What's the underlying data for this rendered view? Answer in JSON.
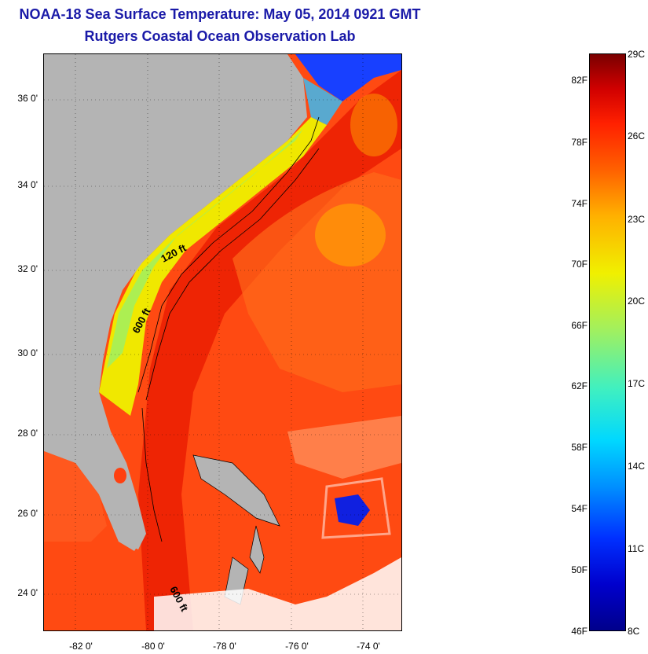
{
  "header": {
    "title": "NOAA-18 Sea Surface Temperature:  May 05, 2014 0921 GMT",
    "subtitle": "Rutgers Coastal Ocean Observation Lab"
  },
  "map": {
    "latitude_labels": [
      "36 0'",
      "34 0'",
      "32 0'",
      "30 0'",
      "28 0'",
      "26 0'",
      "24 0'"
    ],
    "longitude_labels": [
      "-82 0'",
      "-80 0'",
      "-78 0'",
      "-76 0'",
      "-74 0'"
    ],
    "contour_labels": {
      "c120": "120 ft",
      "c600a": "600 ft",
      "c600b": "600 ft"
    },
    "colors": {
      "land": "#b4b4b4",
      "gulf_stream": "#ff2a00",
      "warm_water": "#ff5010",
      "shelf_cool": "#f0f000",
      "nearshore": "#a0f060",
      "cold": "#0000cd",
      "cloud": "#ffffff"
    }
  },
  "colorbar": {
    "fahrenheit_labels": [
      "82F",
      "78F",
      "74F",
      "70F",
      "66F",
      "62F",
      "58F",
      "54F",
      "50F",
      "46F"
    ],
    "celsius_labels": [
      "29C",
      "26C",
      "23C",
      "20C",
      "17C",
      "14C",
      "11C",
      "8C"
    ]
  }
}
